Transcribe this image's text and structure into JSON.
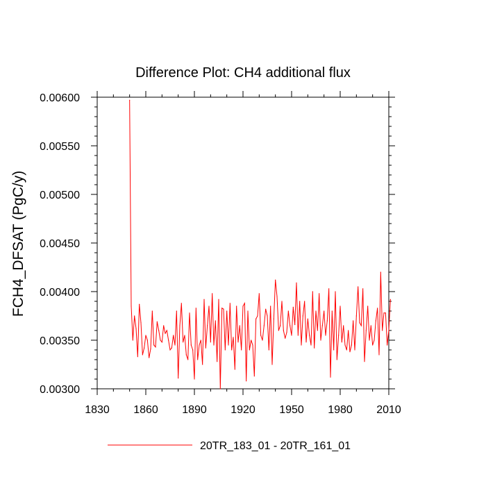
{
  "chart_data": {
    "type": "line",
    "title": "Difference Plot: CH4 additional flux",
    "ylabel": "FCH4_DFSAT  (PgC/y)",
    "xlabel": "",
    "xlim": [
      1830,
      2010
    ],
    "ylim": [
      0.003,
      0.006
    ],
    "x_ticks": [
      1830,
      1860,
      1890,
      1920,
      1950,
      1980,
      2010
    ],
    "x_tick_labels": [
      "1830",
      "1860",
      "1890",
      "1920",
      "1950",
      "1980",
      "2010"
    ],
    "y_ticks": [
      0.003,
      0.0035,
      0.004,
      0.0045,
      0.005,
      0.0055,
      0.006
    ],
    "y_tick_labels": [
      "0.00300",
      "0.00350",
      "0.00400",
      "0.00450",
      "0.00500",
      "0.00550",
      "0.00600"
    ],
    "grid": false,
    "legend_position": "bottom",
    "series": [
      {
        "name": "20TR_183_01 - 20TR_161_01",
        "color": "#ff0000",
        "x_start": 1850,
        "x_step": 1,
        "values": [
          0.00597,
          0.00385,
          0.0035,
          0.00375,
          0.00362,
          0.00333,
          0.00387,
          0.00368,
          0.00335,
          0.00342,
          0.00355,
          0.0035,
          0.00332,
          0.00341,
          0.0038,
          0.00345,
          0.00343,
          0.00369,
          0.0036,
          0.0035,
          0.00348,
          0.00365,
          0.00357,
          0.0036,
          0.0035,
          0.0034,
          0.00342,
          0.00355,
          0.00345,
          0.0038,
          0.00311,
          0.00365,
          0.00388,
          0.00348,
          0.00355,
          0.00335,
          0.0033,
          0.00378,
          0.00345,
          0.0034,
          0.0031,
          0.00383,
          0.0033,
          0.00345,
          0.0035,
          0.00325,
          0.00392,
          0.00342,
          0.00365,
          0.00385,
          0.00348,
          0.00398,
          0.00345,
          0.0037,
          0.00328,
          0.00392,
          0.003,
          0.00383,
          0.00382,
          0.0034,
          0.0038,
          0.00345,
          0.00388,
          0.0034,
          0.00353,
          0.0032,
          0.00385,
          0.00348,
          0.00365,
          0.0034,
          0.00385,
          0.00388,
          0.00308,
          0.0038,
          0.0034,
          0.0035,
          0.00345,
          0.00313,
          0.00372,
          0.00375,
          0.00398,
          0.00355,
          0.0035,
          0.00365,
          0.00382,
          0.00375,
          0.0034,
          0.00385,
          0.00325,
          0.00372,
          0.00412,
          0.00395,
          0.0036,
          0.00365,
          0.0039,
          0.0036,
          0.00352,
          0.00358,
          0.0038,
          0.00365,
          0.00355,
          0.00384,
          0.00366,
          0.00409,
          0.00355,
          0.0039,
          0.00345,
          0.00375,
          0.0039,
          0.00348,
          0.00372,
          0.00355,
          0.00345,
          0.004,
          0.00342,
          0.0038,
          0.0036,
          0.00398,
          0.0035,
          0.00365,
          0.0038,
          0.00355,
          0.0037,
          0.00403,
          0.00312,
          0.0038,
          0.0034,
          0.004,
          0.0033,
          0.00355,
          0.00385,
          0.00348,
          0.00365,
          0.00345,
          0.0034,
          0.0036,
          0.00338,
          0.00345,
          0.0037,
          0.0034,
          0.00375,
          0.00405,
          0.00368,
          0.00365,
          0.00403,
          0.00328,
          0.0036,
          0.00385,
          0.0035,
          0.00365,
          0.00345,
          0.0035,
          0.0037,
          0.00383,
          0.00335,
          0.0042,
          0.0036,
          0.00378,
          0.00378,
          0.00345,
          0.0036,
          0.00392
        ]
      }
    ]
  }
}
